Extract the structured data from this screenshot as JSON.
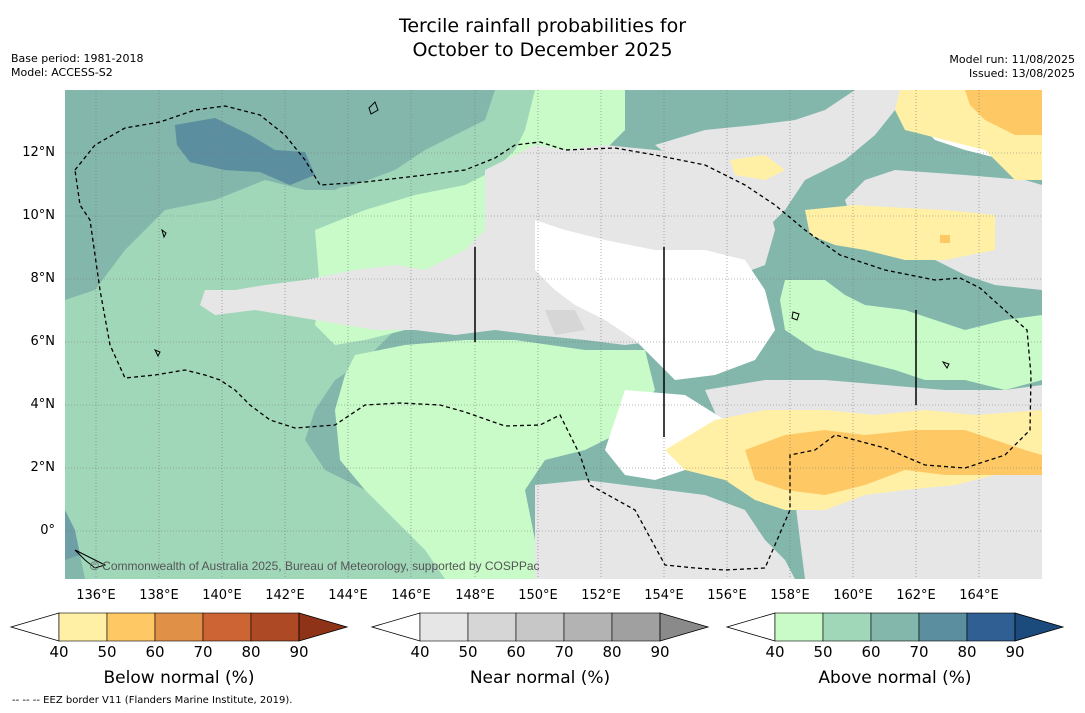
{
  "title_line1": "Tercile rainfall probabilities for",
  "title_line2": "October to December 2025",
  "base_period": "Base period: 1981-2018",
  "model": "Model: ACCESS-S2",
  "model_run": "Model run: 11/08/2025",
  "issued": "Issued: 13/08/2025",
  "copyright": "© Commonwealth of Australia 2025, Bureau of Meteorology, supported by COSPPac",
  "footnote": "--  --  -- EEZ border V11 (Flanders Marine Institute, 2019).",
  "lat_labels": [
    "12°N",
    "10°N",
    "8°N",
    "6°N",
    "4°N",
    "2°N",
    "0°"
  ],
  "lon_labels": [
    "136°E",
    "138°E",
    "140°E",
    "142°E",
    "144°E",
    "146°E",
    "148°E",
    "150°E",
    "152°E",
    "154°E",
    "156°E",
    "158°E",
    "160°E",
    "162°E",
    "164°E"
  ],
  "colorbars": [
    {
      "label": "Below normal (%)",
      "ticks": [
        "40",
        "50",
        "60",
        "70",
        "80",
        "90"
      ],
      "colors": [
        "#fff0a6",
        "#fec965",
        "#e09147",
        "#cc6433",
        "#ad4a25",
        "#8e3318"
      ]
    },
    {
      "label": "Near normal (%)",
      "ticks": [
        "40",
        "50",
        "60",
        "70",
        "80",
        "90"
      ],
      "colors": [
        "#e6e6e6",
        "#d6d6d6",
        "#c7c7c7",
        "#b3b3b3",
        "#a0a0a0",
        "#8a8a8a"
      ]
    },
    {
      "label": "Above normal (%)",
      "ticks": [
        "40",
        "50",
        "60",
        "70",
        "80",
        "90"
      ],
      "colors": [
        "#c8fbc8",
        "#a1d7b9",
        "#83b7ac",
        "#5b8fa0",
        "#2f5f93",
        "#1b4a7d"
      ]
    }
  ]
}
